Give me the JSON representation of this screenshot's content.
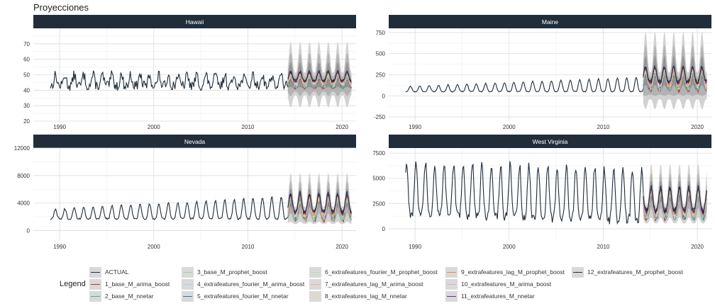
{
  "title": "Proyecciones",
  "colors": {
    "strip_bg": "#212d3a",
    "strip_text": "#ffffff",
    "actual": "#1c2b3a",
    "band_outer": "#c3c3c3",
    "band_mid": "#a8a8a8",
    "band_inner": "#8a8a8a",
    "grid_major": "#dcdcdc",
    "grid_minor": "#ededed"
  },
  "legend": {
    "title": "Legend",
    "items": [
      {
        "label": "ACTUAL",
        "color": "#1c2b3a"
      },
      {
        "label": "1_base_M_arima_boost",
        "color": "#d62728"
      },
      {
        "label": "2_base_M_nnetar",
        "color": "#35b7a7"
      },
      {
        "label": "3_base_M_prophet_boost",
        "color": "#a6cf8a"
      },
      {
        "label": "4_extrafeatures_fourier_M_arima_boost",
        "color": "#a8d6e2"
      },
      {
        "label": "5_extrafeatures_fourier_M_nnetar",
        "color": "#3a6fb0"
      },
      {
        "label": "6_extrafeatures_fourier_M_prophet_boost",
        "color": "#b9dca0"
      },
      {
        "label": "7_extrafeatures_lag_M_arima_boost",
        "color": "#f3a9a9"
      },
      {
        "label": "8_extrafeatures_lag_M_nnetar",
        "color": "#f6d49a"
      },
      {
        "label": "9_extrafeatures_lag_M_prophet_boost",
        "color": "#f08a24"
      },
      {
        "label": "10_extrafeatures_M_arima_boost",
        "color": "#cdb5d8"
      },
      {
        "label": "11_extrafeatures_M_nnetar",
        "color": "#6a2d8a"
      },
      {
        "label": "12_extrafeatures_M_prophet_boost",
        "color": "#1c2b3a"
      }
    ]
  },
  "chart_data": [
    {
      "type": "line",
      "panel": "Hawaii",
      "x_range": [
        1987.2,
        2021.5
      ],
      "x_ticks": [
        1990,
        2000,
        2010,
        2020
      ],
      "ylim": [
        20,
        80
      ],
      "y_ticks": [
        20,
        30,
        40,
        50,
        60,
        70
      ],
      "actual": {
        "start_year": 1989,
        "end_year": 2014.5,
        "base": 45,
        "trend": 0.0,
        "amplitude": 3.5,
        "noise": 3.2,
        "peak_phase": 0.55
      },
      "forecast": {
        "start_year": 2014.25,
        "end_year": 2021.0,
        "base": 47,
        "amplitude": 6,
        "spread": 4,
        "band": 12
      }
    },
    {
      "type": "line",
      "panel": "Maine",
      "x_range": [
        1987.2,
        2021.5
      ],
      "x_ticks": [
        1990,
        2000,
        2010,
        2020
      ],
      "ylim": [
        -300,
        800
      ],
      "y_ticks": [
        -250,
        0,
        250,
        500,
        750
      ],
      "actual": {
        "start_year": 1989,
        "end_year": 2014.5,
        "base": 50,
        "trend": 4.5,
        "amplitude": 60,
        "noise": 10,
        "peak_phase": 0.5
      },
      "forecast": {
        "start_year": 2014.25,
        "end_year": 2021.0,
        "base": 210,
        "amplitude": 180,
        "spread": 90,
        "band": 260
      }
    },
    {
      "type": "line",
      "panel": "Nevada",
      "x_range": [
        1987.2,
        2021.5
      ],
      "x_ticks": [
        1990,
        2000,
        2010,
        2020
      ],
      "ylim": [
        -1500,
        12000
      ],
      "y_ticks": [
        0,
        4000,
        8000,
        12000
      ],
      "actual": {
        "start_year": 1989,
        "end_year": 2014.5,
        "base": 1700,
        "trend": 75,
        "amplitude": 1400,
        "noise": 250,
        "peak_phase": 0.55
      },
      "forecast": {
        "start_year": 2014.25,
        "end_year": 2021.0,
        "base": 3500,
        "amplitude": 2600,
        "spread": 1100,
        "band": 2000
      }
    },
    {
      "type": "line",
      "panel": "West Virginia",
      "x_range": [
        1987.2,
        2021.5
      ],
      "x_ticks": [
        1990,
        2000,
        2010,
        2020
      ],
      "ylim": [
        -1200,
        8000
      ],
      "y_ticks": [
        0,
        2500,
        5000,
        7500
      ],
      "actual": {
        "start_year": 1989,
        "end_year": 2014.5,
        "base": 3000,
        "trend": -25,
        "amplitude": 2600,
        "noise": 450,
        "peak_phase": 0.1
      },
      "forecast": {
        "start_year": 2014.25,
        "end_year": 2021.0,
        "base": 2600,
        "amplitude": 2300,
        "spread": 700,
        "band": 1500
      }
    }
  ]
}
